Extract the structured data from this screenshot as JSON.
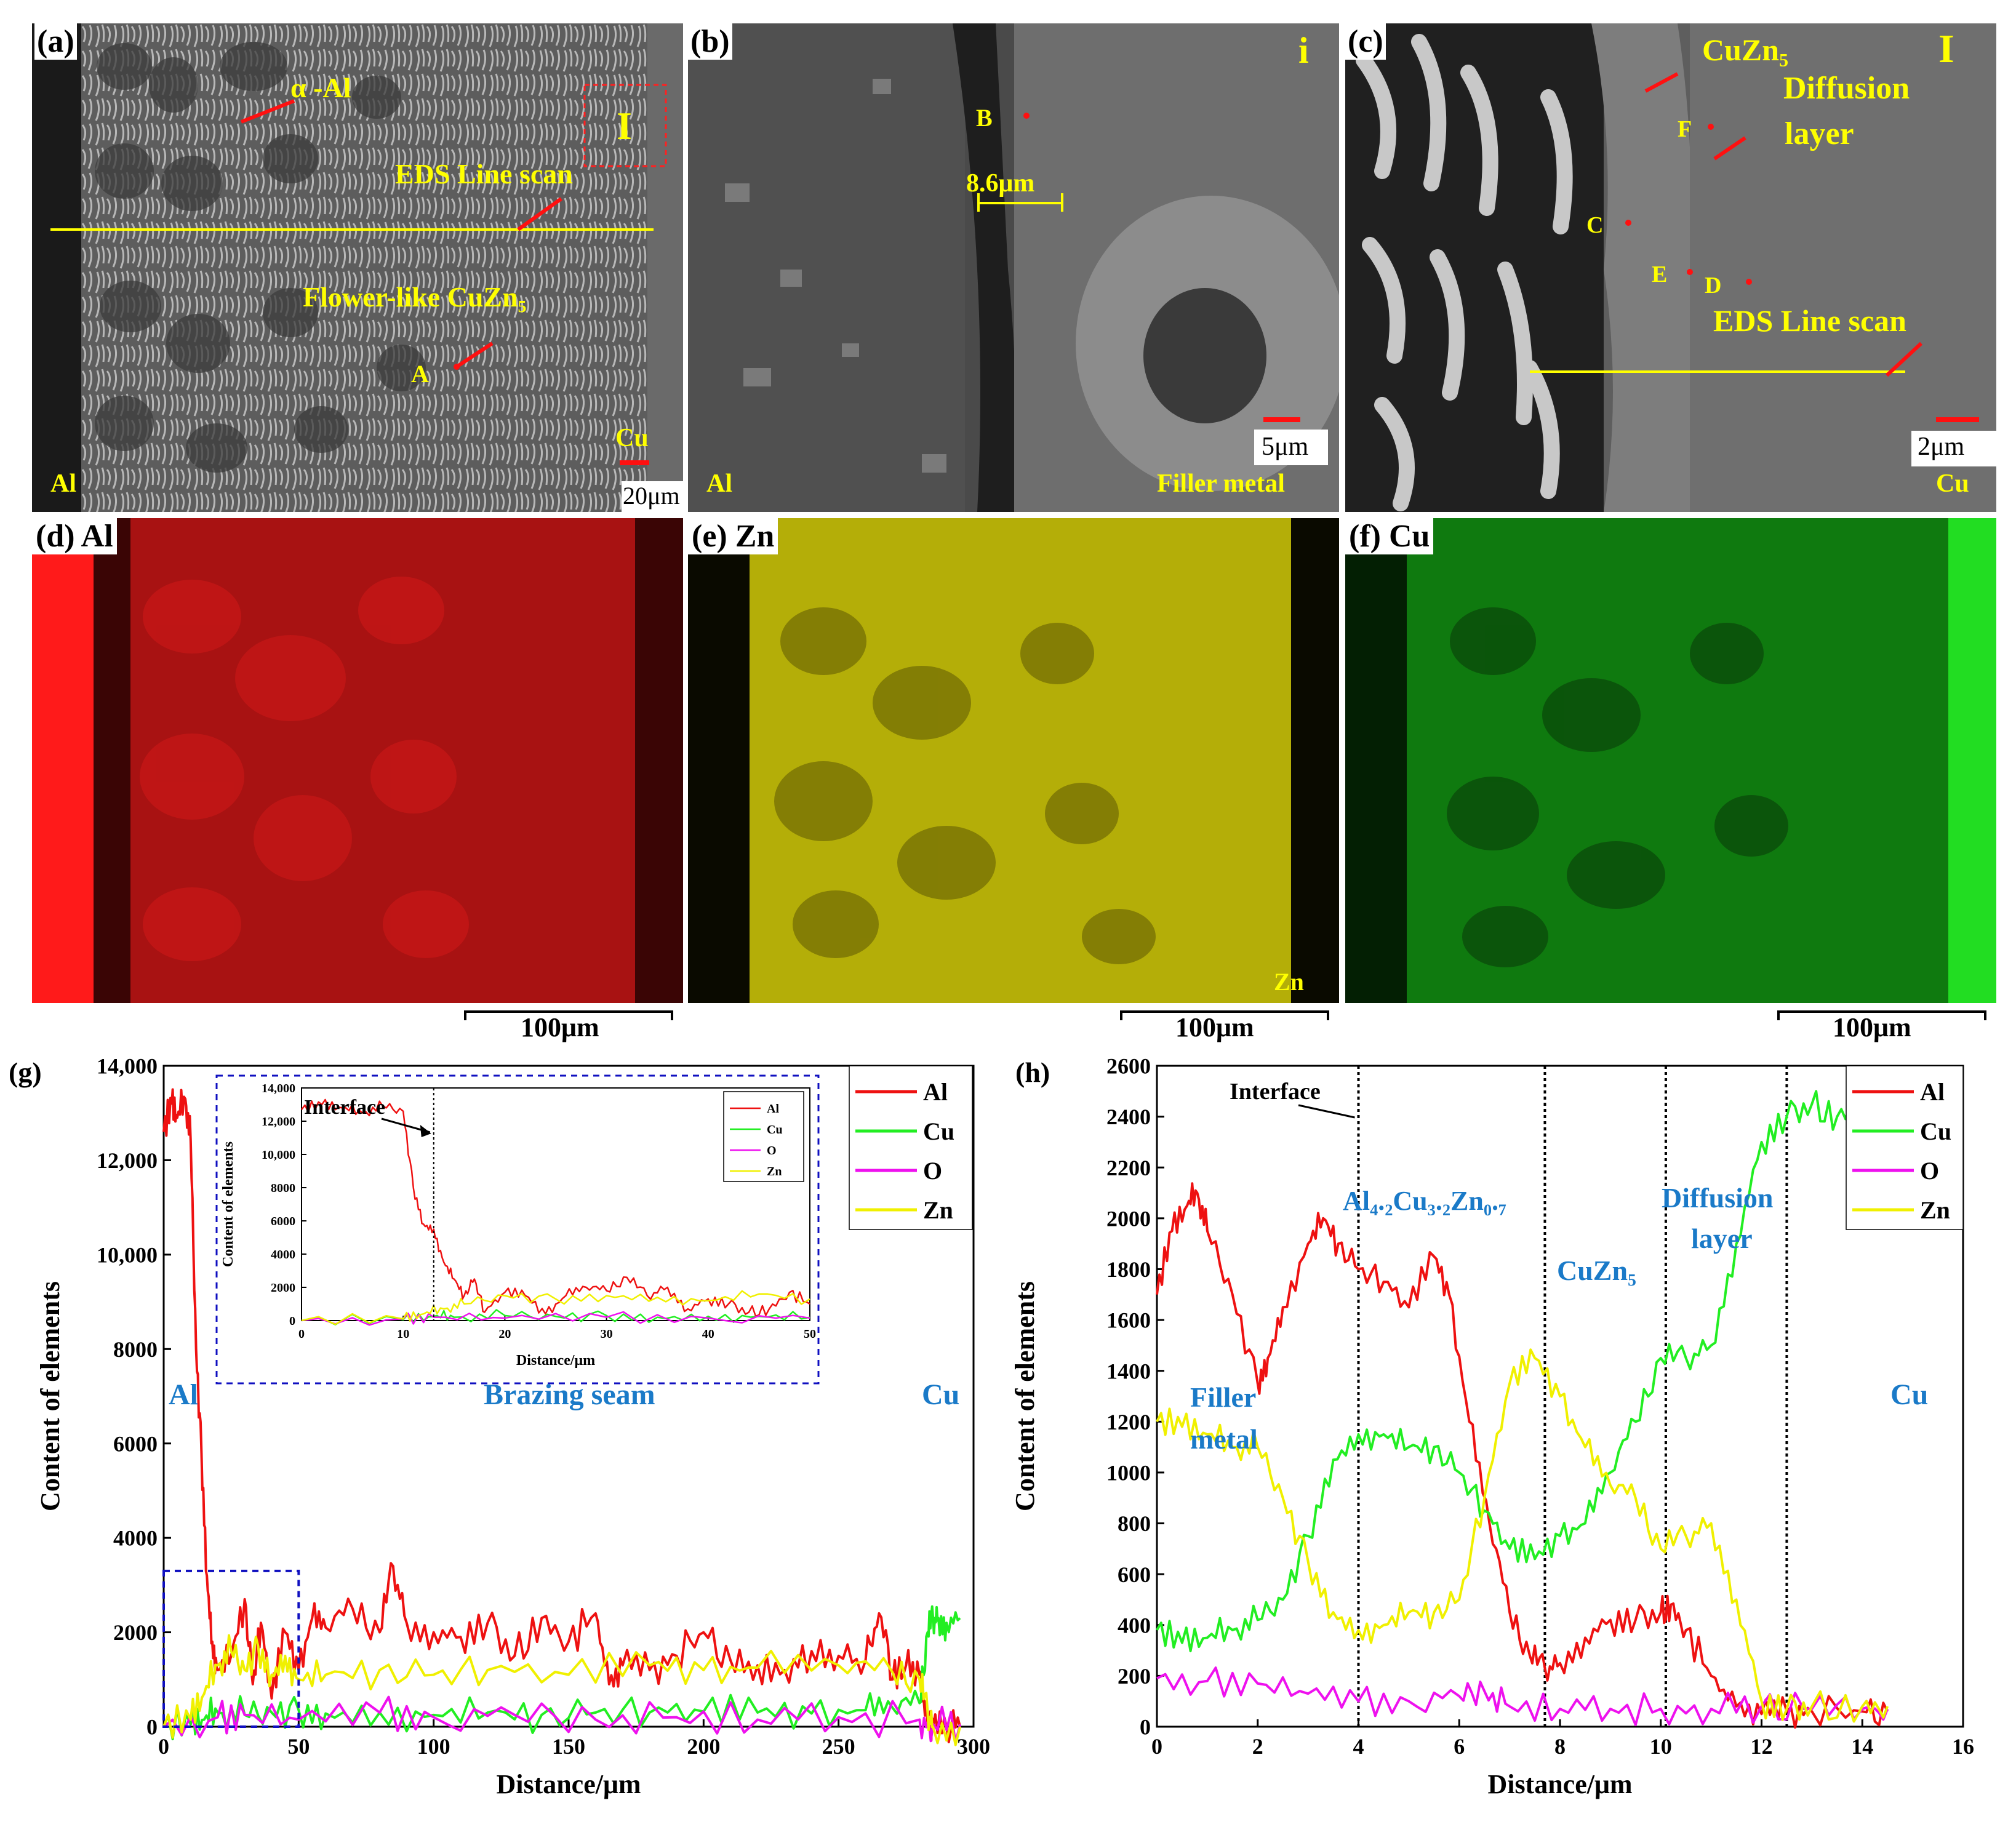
{
  "figure": {
    "a": {
      "label": "(a)",
      "alpha_al": "α -Al",
      "region_I": "I",
      "eds_line": "EDS Line scan",
      "flower": "Flower-like CuZn₅",
      "point_A": "A",
      "left": "Al",
      "right": "Cu",
      "scale": "20μm"
    },
    "b": {
      "label": "(b)",
      "region": "i",
      "point_B": "B",
      "width": "8.6μm",
      "left": "Al",
      "right": "Filler metal",
      "scale": "5μm"
    },
    "c": {
      "label": "(c)",
      "region": "I",
      "cuzn5": "CuZn₅",
      "diffusion1": "Diffusion",
      "diffusion2": "layer",
      "point_C": "C",
      "point_D": "D",
      "point_E": "E",
      "point_F": "F",
      "eds_line": "EDS Line scan",
      "right": "Cu",
      "scale": "2μm"
    },
    "d": {
      "label": "(d) Al",
      "color": "#d40000"
    },
    "e": {
      "label": "(e) Zn",
      "corner": "Zn",
      "color": "#b8b000"
    },
    "f": {
      "label": "(f) Cu",
      "color": "#00b000"
    },
    "map_scale": "100μm"
  },
  "chart_data": [
    {
      "id": "g",
      "type": "line",
      "label": "(g)",
      "xlabel": "Distance/μm",
      "ylabel": "Content of elements",
      "xlim": [
        0,
        300
      ],
      "ylim": [
        0,
        14000
      ],
      "xticks": [
        "0",
        "50",
        "100",
        "150",
        "200",
        "250",
        "300"
      ],
      "yticks": [
        "0",
        "2000",
        "4000",
        "6000",
        "8000",
        "10,000",
        "12,000",
        "14,000"
      ],
      "annotations": {
        "left": "Al",
        "middle": "Brazing seam",
        "right": "Cu"
      },
      "legend": [
        "Al",
        "Cu",
        "O",
        "Zn"
      ],
      "series": [
        {
          "name": "Al",
          "color": "#ee1111",
          "x": [
            0,
            3,
            5,
            8,
            10,
            12,
            14,
            16,
            18,
            20,
            25,
            30,
            33,
            36,
            40,
            45,
            50,
            55,
            60,
            70,
            80,
            85,
            90,
            100,
            110,
            120,
            130,
            140,
            150,
            160,
            165,
            170,
            180,
            190,
            200,
            210,
            220,
            230,
            240,
            250,
            260,
            265,
            270,
            275,
            280,
            283,
            285,
            290,
            295
          ],
          "y": [
            12600,
            13200,
            12900,
            13300,
            12400,
            8000,
            5800,
            3200,
            1800,
            1200,
            1500,
            2700,
            900,
            2200,
            600,
            2000,
            1200,
            2300,
            2100,
            2500,
            2000,
            3400,
            2200,
            2000,
            1900,
            2200,
            1500,
            2300,
            1800,
            2400,
            900,
            1300,
            1200,
            1500,
            2000,
            1400,
            1300,
            1200,
            1600,
            1500,
            1400,
            2400,
            1000,
            1300,
            1100,
            0,
            0,
            0,
            0
          ]
        },
        {
          "name": "Cu",
          "color": "#22ee22",
          "x": [
            0,
            10,
            15,
            20,
            30,
            40,
            50,
            60,
            80,
            100,
            120,
            140,
            160,
            180,
            200,
            220,
            240,
            260,
            270,
            280,
            283,
            285,
            287,
            290,
            295
          ],
          "y": [
            0,
            50,
            150,
            300,
            250,
            300,
            350,
            280,
            300,
            250,
            300,
            250,
            300,
            300,
            320,
            300,
            280,
            350,
            400,
            500,
            2000,
            2300,
            2300,
            2200,
            2300
          ]
        },
        {
          "name": "O",
          "color": "#ee11ee",
          "x": [
            0,
            20,
            30,
            50,
            80,
            100,
            130,
            160,
            190,
            220,
            250,
            280,
            285,
            295
          ],
          "y": [
            0,
            200,
            250,
            150,
            300,
            200,
            250,
            150,
            200,
            150,
            200,
            150,
            50,
            50
          ]
        },
        {
          "name": "Zn",
          "color": "#f0f000",
          "x": [
            0,
            10,
            15,
            20,
            25,
            30,
            35,
            40,
            45,
            50,
            60,
            80,
            100,
            120,
            150,
            180,
            200,
            220,
            250,
            270,
            280,
            283,
            285,
            295
          ],
          "y": [
            0,
            150,
            700,
            1300,
            1600,
            1200,
            1700,
            1100,
            1500,
            1000,
            1100,
            1200,
            1100,
            1200,
            1100,
            1300,
            1200,
            1250,
            1300,
            1150,
            1000,
            300,
            0,
            0
          ]
        }
      ],
      "inset": {
        "xlabel": "Distance/μm",
        "ylabel": "Content of elements",
        "xlim": [
          0,
          50
        ],
        "ylim": [
          0,
          14000
        ],
        "xticks": [
          "0",
          "10",
          "20",
          "30",
          "40",
          "50"
        ],
        "yticks": [
          "0",
          "2000",
          "4000",
          "6000",
          "8000",
          "10,000",
          "12,000",
          "14,000"
        ],
        "interface": "Interface",
        "interface_x": 13,
        "legend": [
          "Al",
          "Cu",
          "O",
          "Zn"
        ],
        "series": [
          {
            "name": "Al",
            "color": "#ee1111",
            "x": [
              0,
              2,
              4,
              6,
              8,
              10,
              11,
              12,
              13,
              14,
              15,
              16,
              17,
              18,
              20,
              22,
              24,
              26,
              28,
              30,
              32,
              34,
              36,
              38,
              40,
              42,
              44,
              46,
              48,
              50
            ],
            "y": [
              12700,
              13000,
              12800,
              12500,
              12900,
              12600,
              8000,
              5800,
              5500,
              3500,
              2500,
              1500,
              2500,
              500,
              1700,
              1500,
              400,
              1500,
              2000,
              1800,
              2600,
              1500,
              2000,
              700,
              1300,
              1000,
              500,
              700,
              1700,
              1000
            ]
          },
          {
            "name": "Cu",
            "color": "#22ee22",
            "x": [
              0,
              10,
              13,
              15,
              20,
              25,
              30,
              35,
              40,
              45,
              50
            ],
            "y": [
              0,
              50,
              250,
              200,
              300,
              250,
              300,
              200,
              250,
              250,
              200
            ]
          },
          {
            "name": "O",
            "color": "#ee11ee",
            "x": [
              0,
              10,
              13,
              20,
              30,
              40,
              50
            ],
            "y": [
              0,
              100,
              200,
              150,
              200,
              150,
              150
            ]
          },
          {
            "name": "Zn",
            "color": "#f0f000",
            "x": [
              0,
              10,
              12,
              14,
              16,
              20,
              25,
              30,
              35,
              40,
              45,
              50
            ],
            "y": [
              0,
              100,
              400,
              700,
              1000,
              1500,
              1300,
              1500,
              1400,
              1200,
              1600,
              1300
            ]
          }
        ]
      }
    },
    {
      "id": "h",
      "type": "line",
      "label": "(h)",
      "xlabel": "Distance/μm",
      "ylabel": "Content of elements",
      "xlim": [
        0,
        16
      ],
      "ylim": [
        0,
        2600
      ],
      "xticks": [
        "0",
        "2",
        "4",
        "6",
        "8",
        "10",
        "12",
        "14",
        "16"
      ],
      "yticks": [
        "0",
        "200",
        "400",
        "600",
        "800",
        "1000",
        "1200",
        "1400",
        "1600",
        "1800",
        "2000",
        "2200",
        "2400",
        "2600"
      ],
      "interfaces": [
        4,
        7.7,
        10.1,
        12.5
      ],
      "annotations": {
        "interface": "Interface",
        "filler1": "Filler",
        "filler2": "metal",
        "phase1": "Al₄.₂Cu₃.₂Zn₀.₇",
        "phase2": "CuZn₅",
        "diffusion1": "Diffusion",
        "diffusion2": "layer",
        "cu": "Cu"
      },
      "legend": [
        "Al",
        "Cu",
        "O",
        "Zn"
      ],
      "series": [
        {
          "name": "Al",
          "color": "#ee1111",
          "x": [
            0,
            0.3,
            0.6,
            0.8,
            1.0,
            1.5,
            2.0,
            2.2,
            2.5,
            3.0,
            3.3,
            3.6,
            4.0,
            4.5,
            5.0,
            5.5,
            5.8,
            6.2,
            6.6,
            7.0,
            7.4,
            7.7,
            8.0,
            8.5,
            9.0,
            9.5,
            10.0,
            10.2,
            10.5,
            11.0,
            11.5,
            12.0,
            12.5,
            13,
            14,
            14.5
          ],
          "y": [
            1700,
            1950,
            2050,
            2100,
            1950,
            1700,
            1350,
            1450,
            1650,
            1900,
            2000,
            1900,
            1800,
            1750,
            1650,
            1850,
            1700,
            1200,
            800,
            450,
            280,
            230,
            250,
            350,
            420,
            420,
            450,
            480,
            380,
            200,
            80,
            50,
            60,
            60,
            60,
            60
          ]
        },
        {
          "name": "Cu",
          "color": "#22ee22",
          "x": [
            0,
            0.5,
            1,
            1.5,
            2,
            2.5,
            3,
            3.5,
            4,
            4.5,
            5,
            5.5,
            6,
            6.5,
            7,
            7.5,
            8,
            8.5,
            9,
            9.5,
            10,
            10.5,
            11,
            11.5,
            12,
            12.5,
            13,
            13.5,
            14,
            14.5
          ],
          "y": [
            380,
            330,
            350,
            380,
            420,
            500,
            750,
            1050,
            1150,
            1150,
            1100,
            1100,
            1000,
            850,
            700,
            660,
            750,
            800,
            1000,
            1200,
            1450,
            1450,
            1500,
            1900,
            2300,
            2400,
            2450,
            2400,
            2450,
            2450
          ]
        },
        {
          "name": "O",
          "color": "#ee11ee",
          "x": [
            0,
            1,
            2,
            3,
            4,
            5,
            6,
            6.5,
            7,
            8,
            9,
            10,
            11,
            12,
            13,
            14,
            14.5
          ],
          "y": [
            190,
            180,
            170,
            130,
            100,
            100,
            120,
            140,
            80,
            70,
            70,
            70,
            70,
            80,
            70,
            70,
            70
          ]
        },
        {
          "name": "Zn",
          "color": "#f0f000",
          "x": [
            0,
            0.5,
            1,
            1.5,
            2,
            2.5,
            3,
            3.5,
            4,
            4.5,
            5,
            5.5,
            6,
            6.5,
            7,
            7.5,
            8,
            8.5,
            9,
            9.5,
            10,
            10.5,
            11,
            11.5,
            12,
            12.5,
            13,
            14,
            14.5
          ],
          "y": [
            1200,
            1180,
            1150,
            1100,
            1100,
            900,
            650,
            450,
            380,
            400,
            450,
            450,
            500,
            900,
            1350,
            1450,
            1300,
            1100,
            950,
            900,
            700,
            750,
            800,
            500,
            100,
            70,
            80,
            80,
            80
          ]
        }
      ]
    }
  ]
}
